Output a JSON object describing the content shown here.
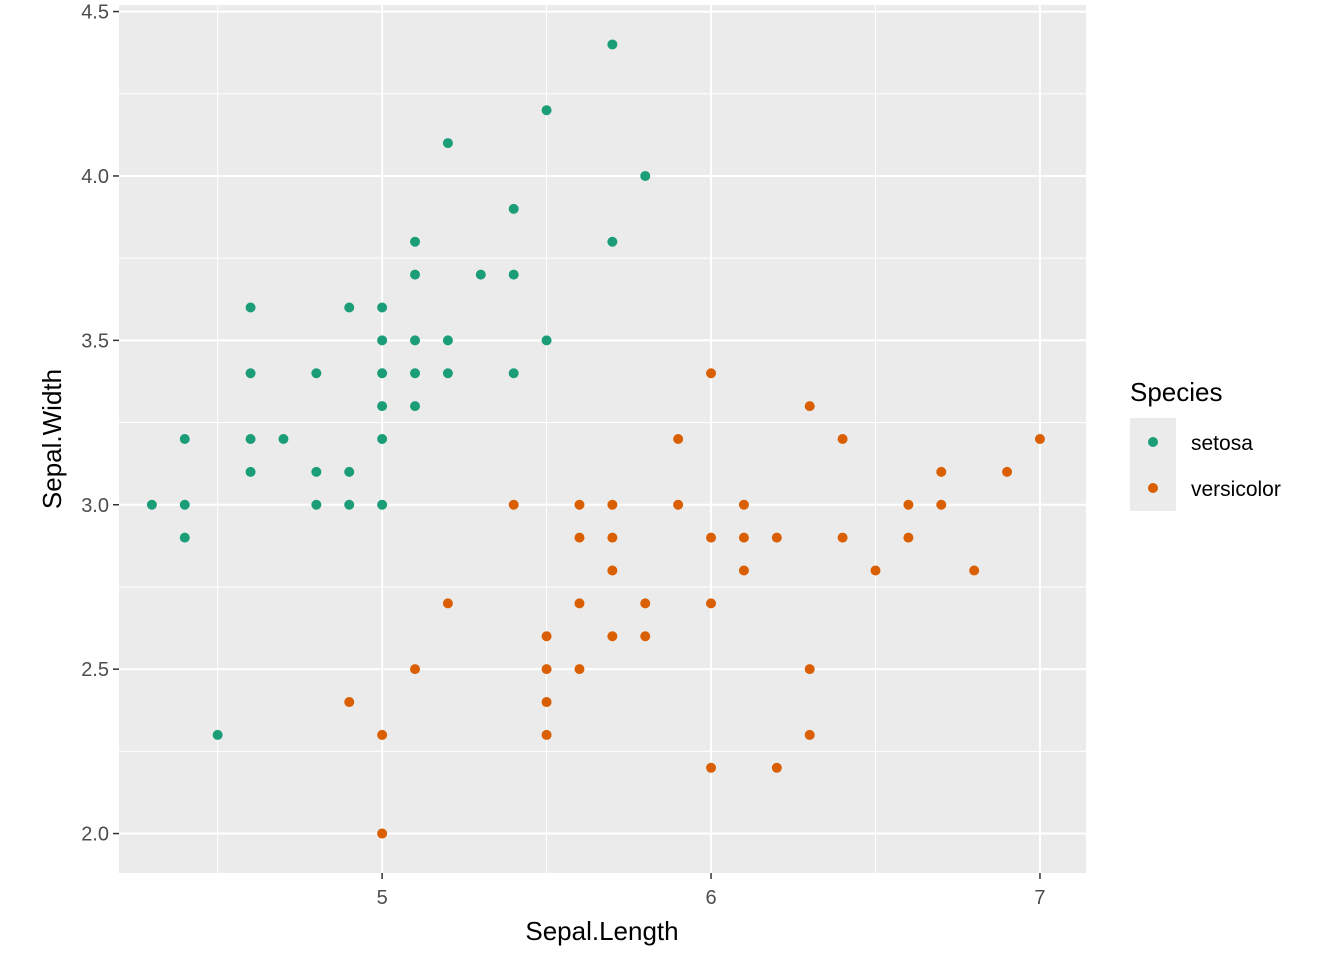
{
  "chart_data": {
    "type": "scatter",
    "title": "",
    "xlabel": "Sepal.Length",
    "ylabel": "Sepal.Width",
    "xlim": [
      4.2,
      7.14
    ],
    "ylim": [
      1.88,
      4.52
    ],
    "x_ticks": [
      5,
      6,
      7
    ],
    "x_tick_labels": [
      "5",
      "6",
      "7"
    ],
    "y_ticks": [
      2.0,
      2.5,
      3.0,
      3.5,
      4.0,
      4.5
    ],
    "y_tick_labels": [
      "2.0",
      "2.5",
      "3.0",
      "3.5",
      "4.0",
      "4.5"
    ],
    "grid": true,
    "panel_background": "#EBEBEB",
    "legend": {
      "title": "Species",
      "placement": "right",
      "entries": [
        {
          "label": "setosa",
          "color": "#1B9E77"
        },
        {
          "label": "versicolor",
          "color": "#D95F02"
        }
      ]
    },
    "series": [
      {
        "name": "setosa",
        "color": "#1B9E77",
        "points": [
          [
            5.7,
            4.4
          ],
          [
            5.5,
            4.2
          ],
          [
            5.2,
            4.1
          ],
          [
            5.8,
            4.0
          ],
          [
            5.4,
            3.9
          ],
          [
            5.1,
            3.8
          ],
          [
            5.7,
            3.8
          ],
          [
            5.1,
            3.7
          ],
          [
            5.3,
            3.7
          ],
          [
            5.4,
            3.7
          ],
          [
            4.6,
            3.6
          ],
          [
            4.9,
            3.6
          ],
          [
            5.0,
            3.6
          ],
          [
            5.0,
            3.5
          ],
          [
            5.1,
            3.5
          ],
          [
            5.2,
            3.5
          ],
          [
            5.5,
            3.5
          ],
          [
            4.6,
            3.4
          ],
          [
            4.8,
            3.4
          ],
          [
            5.0,
            3.4
          ],
          [
            5.1,
            3.4
          ],
          [
            5.2,
            3.4
          ],
          [
            5.4,
            3.4
          ],
          [
            5.0,
            3.3
          ],
          [
            5.1,
            3.3
          ],
          [
            4.4,
            3.2
          ],
          [
            4.6,
            3.2
          ],
          [
            4.7,
            3.2
          ],
          [
            5.0,
            3.2
          ],
          [
            4.6,
            3.1
          ],
          [
            4.8,
            3.1
          ],
          [
            4.9,
            3.1
          ],
          [
            4.3,
            3.0
          ],
          [
            4.4,
            3.0
          ],
          [
            4.8,
            3.0
          ],
          [
            4.9,
            3.0
          ],
          [
            5.0,
            3.0
          ],
          [
            4.4,
            2.9
          ],
          [
            4.5,
            2.3
          ]
        ]
      },
      {
        "name": "versicolor",
        "color": "#D95F02",
        "points": [
          [
            6.0,
            3.4
          ],
          [
            6.3,
            3.3
          ],
          [
            5.9,
            3.2
          ],
          [
            6.4,
            3.2
          ],
          [
            7.0,
            3.2
          ],
          [
            6.7,
            3.1
          ],
          [
            6.9,
            3.1
          ],
          [
            5.4,
            3.0
          ],
          [
            5.6,
            3.0
          ],
          [
            5.7,
            3.0
          ],
          [
            5.9,
            3.0
          ],
          [
            6.1,
            3.0
          ],
          [
            6.6,
            3.0
          ],
          [
            6.7,
            3.0
          ],
          [
            5.6,
            2.9
          ],
          [
            5.7,
            2.9
          ],
          [
            6.0,
            2.9
          ],
          [
            6.1,
            2.9
          ],
          [
            6.2,
            2.9
          ],
          [
            6.4,
            2.9
          ],
          [
            6.6,
            2.9
          ],
          [
            5.7,
            2.8
          ],
          [
            6.1,
            2.8
          ],
          [
            6.5,
            2.8
          ],
          [
            6.8,
            2.8
          ],
          [
            5.2,
            2.7
          ],
          [
            5.6,
            2.7
          ],
          [
            5.8,
            2.7
          ],
          [
            6.0,
            2.7
          ],
          [
            5.5,
            2.6
          ],
          [
            5.7,
            2.6
          ],
          [
            5.8,
            2.6
          ],
          [
            5.1,
            2.5
          ],
          [
            5.5,
            2.5
          ],
          [
            5.6,
            2.5
          ],
          [
            6.3,
            2.5
          ],
          [
            4.9,
            2.4
          ],
          [
            5.5,
            2.4
          ],
          [
            5.0,
            2.3
          ],
          [
            5.5,
            2.3
          ],
          [
            6.3,
            2.3
          ],
          [
            6.0,
            2.2
          ],
          [
            6.2,
            2.2
          ],
          [
            5.0,
            2.0
          ]
        ]
      }
    ]
  }
}
